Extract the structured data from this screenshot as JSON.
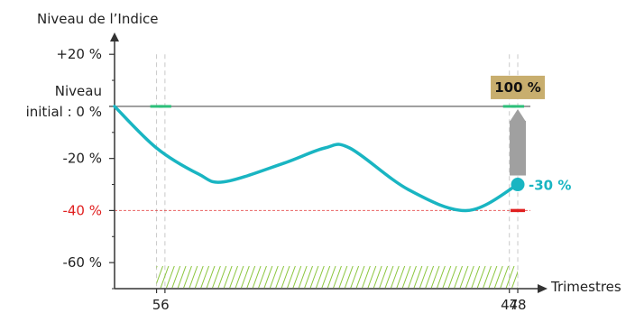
{
  "chart_data": {
    "type": "line",
    "ylabel": "Niveau de l’Indice",
    "xlabel": "Trimestres",
    "ylim": [
      -70,
      27
    ],
    "xlim": [
      0,
      49.5
    ],
    "yticks": [
      {
        "value": 20,
        "label": "+20 %"
      },
      {
        "value": 0,
        "label_line1": "Niveau",
        "label_line2": "initial : 0 %"
      },
      {
        "value": -20,
        "label": "-20 %"
      },
      {
        "value": -40,
        "label": "-40 %",
        "highlight": true
      },
      {
        "value": -60,
        "label": "-60 %"
      }
    ],
    "xticks": [
      {
        "value": 5,
        "label": "5"
      },
      {
        "value": 6,
        "label": "6"
      },
      {
        "value": 47,
        "label": "47"
      },
      {
        "value": 48,
        "label": "48"
      }
    ],
    "barrier_level": -40,
    "observation_dates": [
      5,
      6,
      47,
      48
    ],
    "series": [
      {
        "color": "#19b5c2",
        "points": [
          {
            "x": 0,
            "y": 0
          },
          {
            "x": 5,
            "y": -16
          },
          {
            "x": 10,
            "y": -26
          },
          {
            "x": 13,
            "y": -29
          },
          {
            "x": 20,
            "y": -22
          },
          {
            "x": 25,
            "y": -16
          },
          {
            "x": 28,
            "y": -16
          },
          {
            "x": 35,
            "y": -32
          },
          {
            "x": 42,
            "y": -40
          },
          {
            "x": 48,
            "y": -30
          }
        ]
      }
    ],
    "final_value": {
      "x": 48,
      "y": -30,
      "label": "-30 %"
    },
    "redemption_badge": {
      "label": "100 %",
      "y": 0
    },
    "colors": {
      "curve": "#19b5c2",
      "barrier": "#e02020",
      "observation_marker": "#2dbf7a",
      "hatch": "#8cc63f",
      "arrow": "#a0a0a0",
      "badge": "#c8ae6e"
    }
  }
}
